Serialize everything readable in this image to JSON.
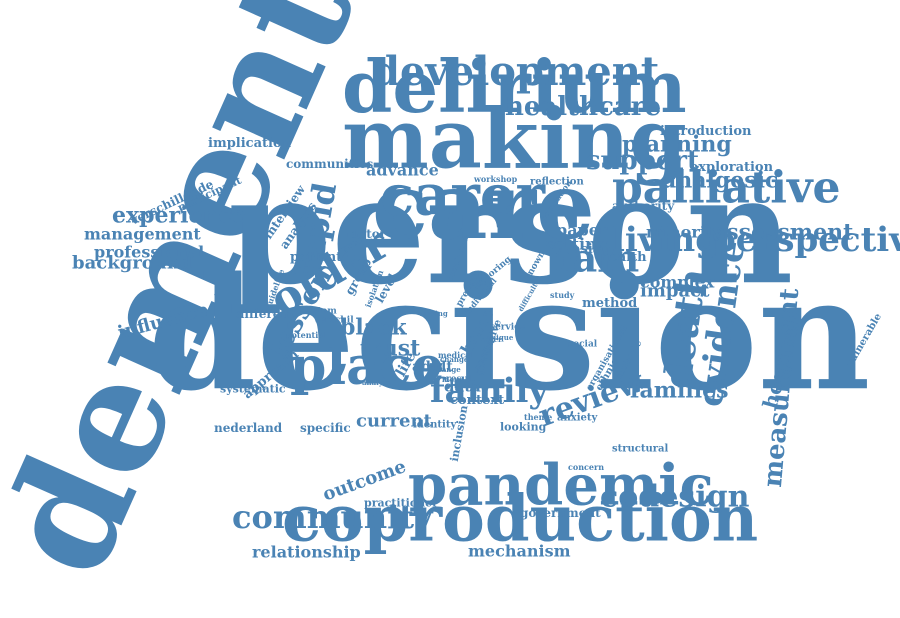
{
  "cloud": {
    "color": "#4a83b4",
    "words": [
      {
        "text": "dementia",
        "rot": -66
      },
      {
        "text": "decision",
        "rot": 0
      },
      {
        "text": "person",
        "rot": 0
      },
      {
        "text": "care",
        "rot": 0
      },
      {
        "text": "making",
        "rot": 0
      },
      {
        "text": "delirium",
        "rot": 0
      },
      {
        "text": "coproduction",
        "rot": 0
      },
      {
        "text": "pandemic",
        "rot": 0
      },
      {
        "text": "carer",
        "rot": 0
      },
      {
        "text": "place",
        "rot": 0
      },
      {
        "text": "palliative",
        "rot": 0
      },
      {
        "text": "perspective",
        "rot": 0
      },
      {
        "text": "living",
        "rot": 0
      },
      {
        "text": "pain",
        "rot": 0
      },
      {
        "text": "older",
        "rot": -30
      },
      {
        "text": "development",
        "rot": 0
      },
      {
        "text": "community",
        "rot": 0
      },
      {
        "text": "family",
        "rot": 0
      },
      {
        "text": "death",
        "rot": -82
      },
      {
        "text": "evidence",
        "rot": -82
      },
      {
        "text": "review",
        "rot": -20
      },
      {
        "text": "measurement",
        "rot": -85
      },
      {
        "text": "rapid",
        "rot": -80
      },
      {
        "text": "healthcare",
        "rot": 0
      },
      {
        "text": "support",
        "rot": 0
      },
      {
        "text": "families",
        "rot": 0
      },
      {
        "text": "assessment",
        "rot": 0
      },
      {
        "text": "codesign",
        "rot": 0
      },
      {
        "text": "experience",
        "rot": 0
      },
      {
        "text": "black",
        "rot": 0
      },
      {
        "text": "trust",
        "rot": 0
      },
      {
        "text": "lesson",
        "rot": -60
      },
      {
        "text": "analgesic",
        "rot": 0
      },
      {
        "text": "planning",
        "rot": 0
      },
      {
        "text": "management",
        "rot": 0
      },
      {
        "text": "background",
        "rot": 0
      },
      {
        "text": "influence",
        "rot": -15
      },
      {
        "text": "professional",
        "rot": 0
      },
      {
        "text": "current",
        "rot": 0
      },
      {
        "text": "impact",
        "rot": 0
      },
      {
        "text": "hospital",
        "rot": -75
      },
      {
        "text": "relationship",
        "rot": 0
      },
      {
        "text": "mechanism",
        "rot": 0
      },
      {
        "text": "outcome",
        "rot": -20
      },
      {
        "text": "advance",
        "rot": 0
      },
      {
        "text": "paper",
        "rot": 0
      },
      {
        "text": "setting",
        "rot": 0
      },
      {
        "text": "minority",
        "rot": 0
      },
      {
        "text": "complex",
        "rot": 0
      },
      {
        "text": "method",
        "rot": 0
      },
      {
        "text": "context",
        "rot": 0
      },
      {
        "text": "data",
        "rot": 0
      },
      {
        "text": "home",
        "rot": -60
      },
      {
        "text": "approach",
        "rot": -40
      },
      {
        "text": "government",
        "rot": 0
      },
      {
        "text": "exploration",
        "rot": 0
      },
      {
        "text": "introduction",
        "rot": 0
      },
      {
        "text": "implication",
        "rot": 0
      },
      {
        "text": "verschillende",
        "rot": -25
      },
      {
        "text": "participant",
        "rot": -25
      },
      {
        "text": "communities",
        "rot": 0
      },
      {
        "text": "interview",
        "rot": -55
      },
      {
        "text": "analysis",
        "rot": -55
      },
      {
        "text": "factor",
        "rot": 0
      },
      {
        "text": "patient",
        "rot": 0
      },
      {
        "text": "group",
        "rot": -60
      },
      {
        "text": "level",
        "rot": -60
      },
      {
        "text": "asian",
        "rot": 0
      },
      {
        "text": "health",
        "rot": 0
      },
      {
        "text": "authority",
        "rot": 0
      },
      {
        "text": "reflection",
        "rot": 0
      },
      {
        "text": "different",
        "rot": 0
      },
      {
        "text": "nederland",
        "rot": 0
      },
      {
        "text": "specific",
        "rot": 0
      },
      {
        "text": "systematic",
        "rot": 0
      },
      {
        "text": "identity",
        "rot": 0
      },
      {
        "text": "inclusion",
        "rot": -80
      },
      {
        "text": "practitioner",
        "rot": 0
      },
      {
        "text": "looking",
        "rot": 0
      },
      {
        "text": "anxiety",
        "rot": 0
      },
      {
        "text": "structural",
        "rot": 0
      },
      {
        "text": "vulnerable",
        "rot": -60
      },
      {
        "text": "organisational",
        "rot": -60
      },
      {
        "text": "ethnic",
        "rot": -60
      },
      {
        "text": "multiple",
        "rot": -60
      },
      {
        "text": "qualitative",
        "rot": -70
      },
      {
        "text": "result",
        "rot": 0
      },
      {
        "text": "service",
        "rot": 0
      },
      {
        "text": "adult",
        "rot": 0
      },
      {
        "text": "life",
        "rot": -60
      },
      {
        "text": "proc",
        "rot": -30
      },
      {
        "text": "workshop",
        "rot": 0
      },
      {
        "text": "population",
        "rot": -55
      },
      {
        "text": "exploring",
        "rot": -40
      },
      {
        "text": "present",
        "rot": -60
      },
      {
        "text": "known",
        "rot": -60
      },
      {
        "text": "theme",
        "rot": 0
      },
      {
        "text": "concern",
        "rot": 0
      },
      {
        "text": "individual",
        "rot": -50
      },
      {
        "text": "verschil",
        "rot": 0
      },
      {
        "text": "system",
        "rot": 0
      },
      {
        "text": "medical",
        "rot": 0
      },
      {
        "text": "social",
        "rot": 0
      },
      {
        "text": "number",
        "rot": -60
      },
      {
        "text": "study",
        "rot": 0
      },
      {
        "text": "potential",
        "rot": 0
      },
      {
        "text": "guideline",
        "rot": -70
      },
      {
        "text": "conclusion",
        "rot": -70
      },
      {
        "text": "isolation",
        "rot": -70
      },
      {
        "text": "difficult",
        "rot": -60
      },
      {
        "text": "unique",
        "rot": 0
      },
      {
        "text": "change",
        "rot": 0
      },
      {
        "text": "range",
        "rot": 0
      },
      {
        "text": "mood",
        "rot": 0
      },
      {
        "text": "analyse",
        "rot": 0
      },
      {
        "text": "finding",
        "rot": 0
      },
      {
        "text": "never",
        "rot": 0
      }
    ]
  }
}
